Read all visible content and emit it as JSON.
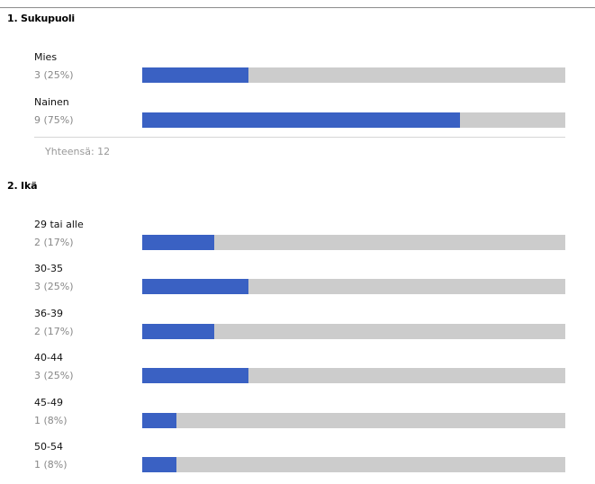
{
  "questions": [
    {
      "title": "1. Sukupuoli",
      "options": [
        {
          "label": "Mies",
          "count_text": "3 (25%)",
          "fraction": 0.25
        },
        {
          "label": "Nainen",
          "count_text": "9 (75%)",
          "fraction": 0.75
        }
      ],
      "total_text": "Yhteensä: 12"
    },
    {
      "title": "2. Ikä",
      "options": [
        {
          "label": "29 tai alle",
          "count_text": "2 (17%)",
          "fraction": 0.17
        },
        {
          "label": "30-35",
          "count_text": "3 (25%)",
          "fraction": 0.25
        },
        {
          "label": "36-39",
          "count_text": "2 (17%)",
          "fraction": 0.17
        },
        {
          "label": "40-44",
          "count_text": "3 (25%)",
          "fraction": 0.25
        },
        {
          "label": "45-49",
          "count_text": "1 (8%)",
          "fraction": 0.08
        },
        {
          "label": "50-54",
          "count_text": "1 (8%)",
          "fraction": 0.08
        }
      ]
    }
  ],
  "colors": {
    "bar_fill": "#3a61c3",
    "bar_track": "#cccccc",
    "count_text": "#888888"
  }
}
